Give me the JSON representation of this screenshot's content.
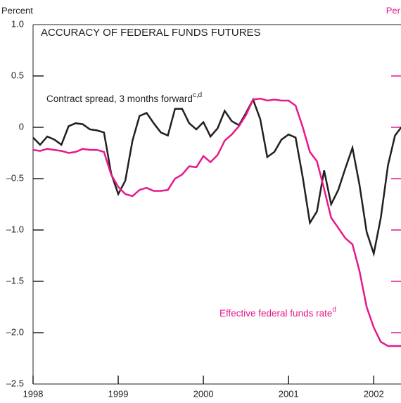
{
  "chart_data": {
    "type": "line",
    "title": "ACCURACY OF FEDERAL FUNDS FUTURES",
    "y_label": "Percent",
    "y2_label": "Per",
    "annotations": [
      {
        "text": "Contract spread, 3 months forward",
        "sup": "c,d"
      },
      {
        "text": "Effective federal funds rate",
        "sup": "d"
      }
    ],
    "x": [
      1998,
      1998.083,
      1998.167,
      1998.25,
      1998.333,
      1998.417,
      1998.5,
      1998.583,
      1998.667,
      1998.75,
      1998.833,
      1998.917,
      1999,
      1999.083,
      1999.167,
      1999.25,
      1999.333,
      1999.417,
      1999.5,
      1999.583,
      1999.667,
      1999.75,
      1999.833,
      1999.917,
      2000,
      2000.083,
      2000.167,
      2000.25,
      2000.333,
      2000.417,
      2000.5,
      2000.583,
      2000.667,
      2000.75,
      2000.833,
      2000.917,
      2001,
      2001.083,
      2001.167,
      2001.25,
      2001.333,
      2001.417,
      2001.5,
      2001.583,
      2001.667,
      2001.75,
      2001.833,
      2001.917,
      2002,
      2002.083,
      2002.167,
      2002.25,
      2002.333
    ],
    "series": [
      {
        "name": "Contract spread, 3 months forward",
        "color": "#231f20",
        "values": [
          -0.1,
          -0.17,
          -0.09,
          -0.12,
          -0.17,
          0.01,
          0.04,
          0.03,
          -0.02,
          -0.03,
          -0.05,
          -0.45,
          -0.65,
          -0.52,
          -0.13,
          0.11,
          0.14,
          0.04,
          -0.05,
          -0.08,
          0.18,
          0.18,
          0.04,
          -0.02,
          0.05,
          -0.09,
          -0.01,
          0.16,
          0.06,
          0.02,
          0.14,
          0.27,
          0.08,
          -0.29,
          -0.24,
          -0.12,
          -0.07,
          -0.1,
          -0.49,
          -0.93,
          -0.82,
          -0.42,
          -0.75,
          -0.61,
          -0.4,
          -0.2,
          -0.56,
          -1.02,
          -1.23,
          -0.88,
          -0.37,
          -0.08,
          0.01
        ]
      },
      {
        "name": "Effective federal funds rate",
        "color": "#e6198c",
        "values": [
          -0.22,
          -0.23,
          -0.21,
          -0.22,
          -0.23,
          -0.25,
          -0.24,
          -0.21,
          -0.22,
          -0.22,
          -0.24,
          -0.46,
          -0.58,
          -0.65,
          -0.67,
          -0.61,
          -0.59,
          -0.62,
          -0.62,
          -0.61,
          -0.5,
          -0.46,
          -0.38,
          -0.39,
          -0.28,
          -0.34,
          -0.27,
          -0.13,
          -0.07,
          0.01,
          0.12,
          0.27,
          0.28,
          0.26,
          0.27,
          0.26,
          0.26,
          0.21,
          0.0,
          -0.24,
          -0.33,
          -0.6,
          -0.88,
          -0.98,
          -1.08,
          -1.14,
          -1.4,
          -1.75,
          -1.95,
          -2.09,
          -2.13,
          -2.13,
          -2.13
        ]
      }
    ],
    "xlim": [
      1998,
      2002.32
    ],
    "xticks": [
      1998,
      1999,
      2000,
      2001,
      2002
    ],
    "ylim": [
      -2.5,
      1
    ],
    "yticks": [
      {
        "value": 1,
        "label": "1.0"
      },
      0.5,
      0,
      {
        "value": -0.5,
        "label": "–0.5"
      },
      {
        "value": -1,
        "label": "–1.0"
      },
      {
        "value": -1.5,
        "label": "–1.5"
      },
      {
        "value": -2,
        "label": "–2.0"
      },
      {
        "value": -2.5,
        "label": "–2.5"
      }
    ],
    "y2_color": "#e6198c"
  }
}
